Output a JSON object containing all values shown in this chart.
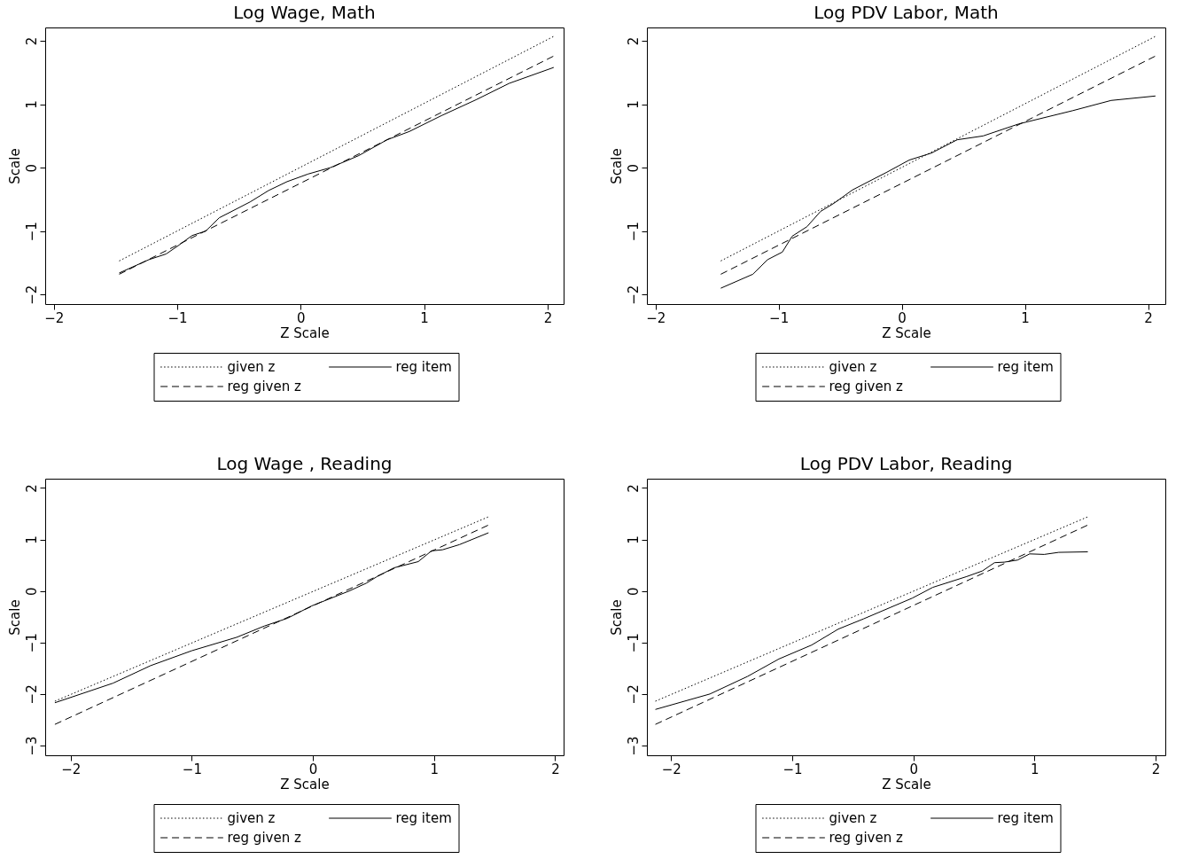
{
  "chart_data": [
    {
      "type": "line",
      "title": "Log Wage, Math",
      "xlabel": "Z Scale",
      "ylabel": "Scale",
      "xlim": [
        -2.07,
        2.13
      ],
      "ylim": [
        -2.15,
        2.21
      ],
      "xticks": [
        -2,
        -1,
        0,
        1,
        2
      ],
      "yticks": [
        -2,
        -1,
        0,
        1,
        2
      ],
      "grid": false,
      "legend": "bottom",
      "series": [
        {
          "name": "given z",
          "color": "#000000",
          "line_style": "dotted",
          "x": [
            -1.47,
            2.05
          ],
          "values": [
            -1.47,
            2.07
          ]
        },
        {
          "name": "reg item",
          "color": "#000000",
          "line_style": "solid",
          "x": [
            -1.47,
            -1.23,
            -1.09,
            -1.0,
            -0.88,
            -0.77,
            -0.66,
            -0.41,
            -0.26,
            -0.11,
            0.06,
            0.24,
            0.47,
            0.7,
            0.88,
            1.14,
            1.42,
            1.69,
            2.05
          ],
          "values": [
            -1.66,
            -1.45,
            -1.36,
            -1.24,
            -1.07,
            -1.0,
            -0.79,
            -0.54,
            -0.36,
            -0.22,
            -0.1,
            0.0,
            0.19,
            0.44,
            0.57,
            0.82,
            1.07,
            1.33,
            1.58
          ]
        },
        {
          "name": "reg given z",
          "color": "#000000",
          "line_style": "dashed",
          "x": [
            -1.47,
            2.05
          ],
          "values": [
            -1.68,
            1.76
          ]
        }
      ]
    },
    {
      "type": "line",
      "title": "Log PDV Labor, Math",
      "xlabel": "Z Scale",
      "ylabel": "Scale",
      "xlim": [
        -2.07,
        2.14
      ],
      "ylim": [
        -2.15,
        2.21
      ],
      "xticks": [
        -2,
        -1,
        0,
        1,
        2
      ],
      "yticks": [
        -2,
        -1,
        0,
        1,
        2
      ],
      "grid": false,
      "legend": "bottom",
      "series": [
        {
          "name": "given z",
          "color": "#000000",
          "line_style": "dotted",
          "x": [
            -1.47,
            2.06
          ],
          "values": [
            -1.47,
            2.07
          ]
        },
        {
          "name": "reg item",
          "color": "#000000",
          "line_style": "solid",
          "x": [
            -1.47,
            -1.21,
            -1.09,
            -0.97,
            -0.89,
            -0.77,
            -0.66,
            -0.55,
            -0.4,
            -0.12,
            0.06,
            0.24,
            0.45,
            0.66,
            0.95,
            1.39,
            1.7,
            2.06
          ],
          "values": [
            -1.9,
            -1.68,
            -1.45,
            -1.33,
            -1.08,
            -0.93,
            -0.69,
            -0.56,
            -0.35,
            -0.07,
            0.12,
            0.23,
            0.44,
            0.5,
            0.69,
            0.9,
            1.06,
            1.13
          ]
        },
        {
          "name": "reg given z",
          "color": "#000000",
          "line_style": "dashed",
          "x": [
            -1.47,
            2.06
          ],
          "values": [
            -1.68,
            1.76
          ]
        }
      ]
    },
    {
      "type": "line",
      "title": "Log Wage , Reading",
      "xlabel": "Z Scale",
      "ylabel": "Scale",
      "xlim": [
        -2.21,
        2.07
      ],
      "ylim": [
        -3.19,
        2.18
      ],
      "xticks": [
        -2,
        -1,
        0,
        1,
        2
      ],
      "yticks": [
        -3,
        -2,
        -1,
        0,
        1,
        2
      ],
      "grid": false,
      "legend": "bottom",
      "series": [
        {
          "name": "given z",
          "color": "#000000",
          "line_style": "dotted",
          "x": [
            -2.13,
            1.45
          ],
          "values": [
            -2.14,
            1.44
          ]
        },
        {
          "name": "reg item",
          "color": "#000000",
          "line_style": "solid",
          "x": [
            -2.13,
            -1.65,
            -1.34,
            -1.0,
            -0.63,
            -0.4,
            -0.21,
            -0.01,
            0.3,
            0.44,
            0.53,
            0.67,
            0.87,
            0.98,
            1.07,
            1.21,
            1.45
          ],
          "values": [
            -2.17,
            -1.79,
            -1.45,
            -1.16,
            -0.9,
            -0.68,
            -0.53,
            -0.29,
            0.0,
            0.15,
            0.28,
            0.45,
            0.57,
            0.78,
            0.8,
            0.9,
            1.13
          ]
        },
        {
          "name": "reg given z",
          "color": "#000000",
          "line_style": "dashed",
          "x": [
            -2.13,
            1.45
          ],
          "values": [
            -2.59,
            1.28
          ]
        }
      ]
    },
    {
      "type": "line",
      "title": "Log PDV Labor, Reading",
      "xlabel": "Z Scale",
      "ylabel": "Scale",
      "xlim": [
        -2.2,
        2.08
      ],
      "ylim": [
        -3.19,
        2.18
      ],
      "xticks": [
        -2,
        -1,
        0,
        1,
        2
      ],
      "yticks": [
        -3,
        -2,
        -1,
        0,
        1,
        2
      ],
      "grid": false,
      "legend": "bottom",
      "series": [
        {
          "name": "given z",
          "color": "#000000",
          "line_style": "dotted",
          "x": [
            -2.13,
            1.44
          ],
          "values": [
            -2.14,
            1.44
          ]
        },
        {
          "name": "reg item",
          "color": "#000000",
          "line_style": "solid",
          "x": [
            -2.13,
            -1.68,
            -1.37,
            -1.11,
            -0.84,
            -0.62,
            -0.41,
            -0.01,
            0.16,
            0.44,
            0.57,
            0.67,
            0.75,
            0.86,
            0.96,
            1.08,
            1.2,
            1.44
          ],
          "values": [
            -2.3,
            -2.0,
            -1.66,
            -1.32,
            -1.05,
            -0.74,
            -0.54,
            -0.14,
            0.07,
            0.28,
            0.39,
            0.55,
            0.56,
            0.6,
            0.72,
            0.71,
            0.75,
            0.76
          ]
        },
        {
          "name": "reg given z",
          "color": "#000000",
          "line_style": "dashed",
          "x": [
            -2.13,
            1.44
          ],
          "values": [
            -2.59,
            1.28
          ]
        }
      ]
    }
  ]
}
